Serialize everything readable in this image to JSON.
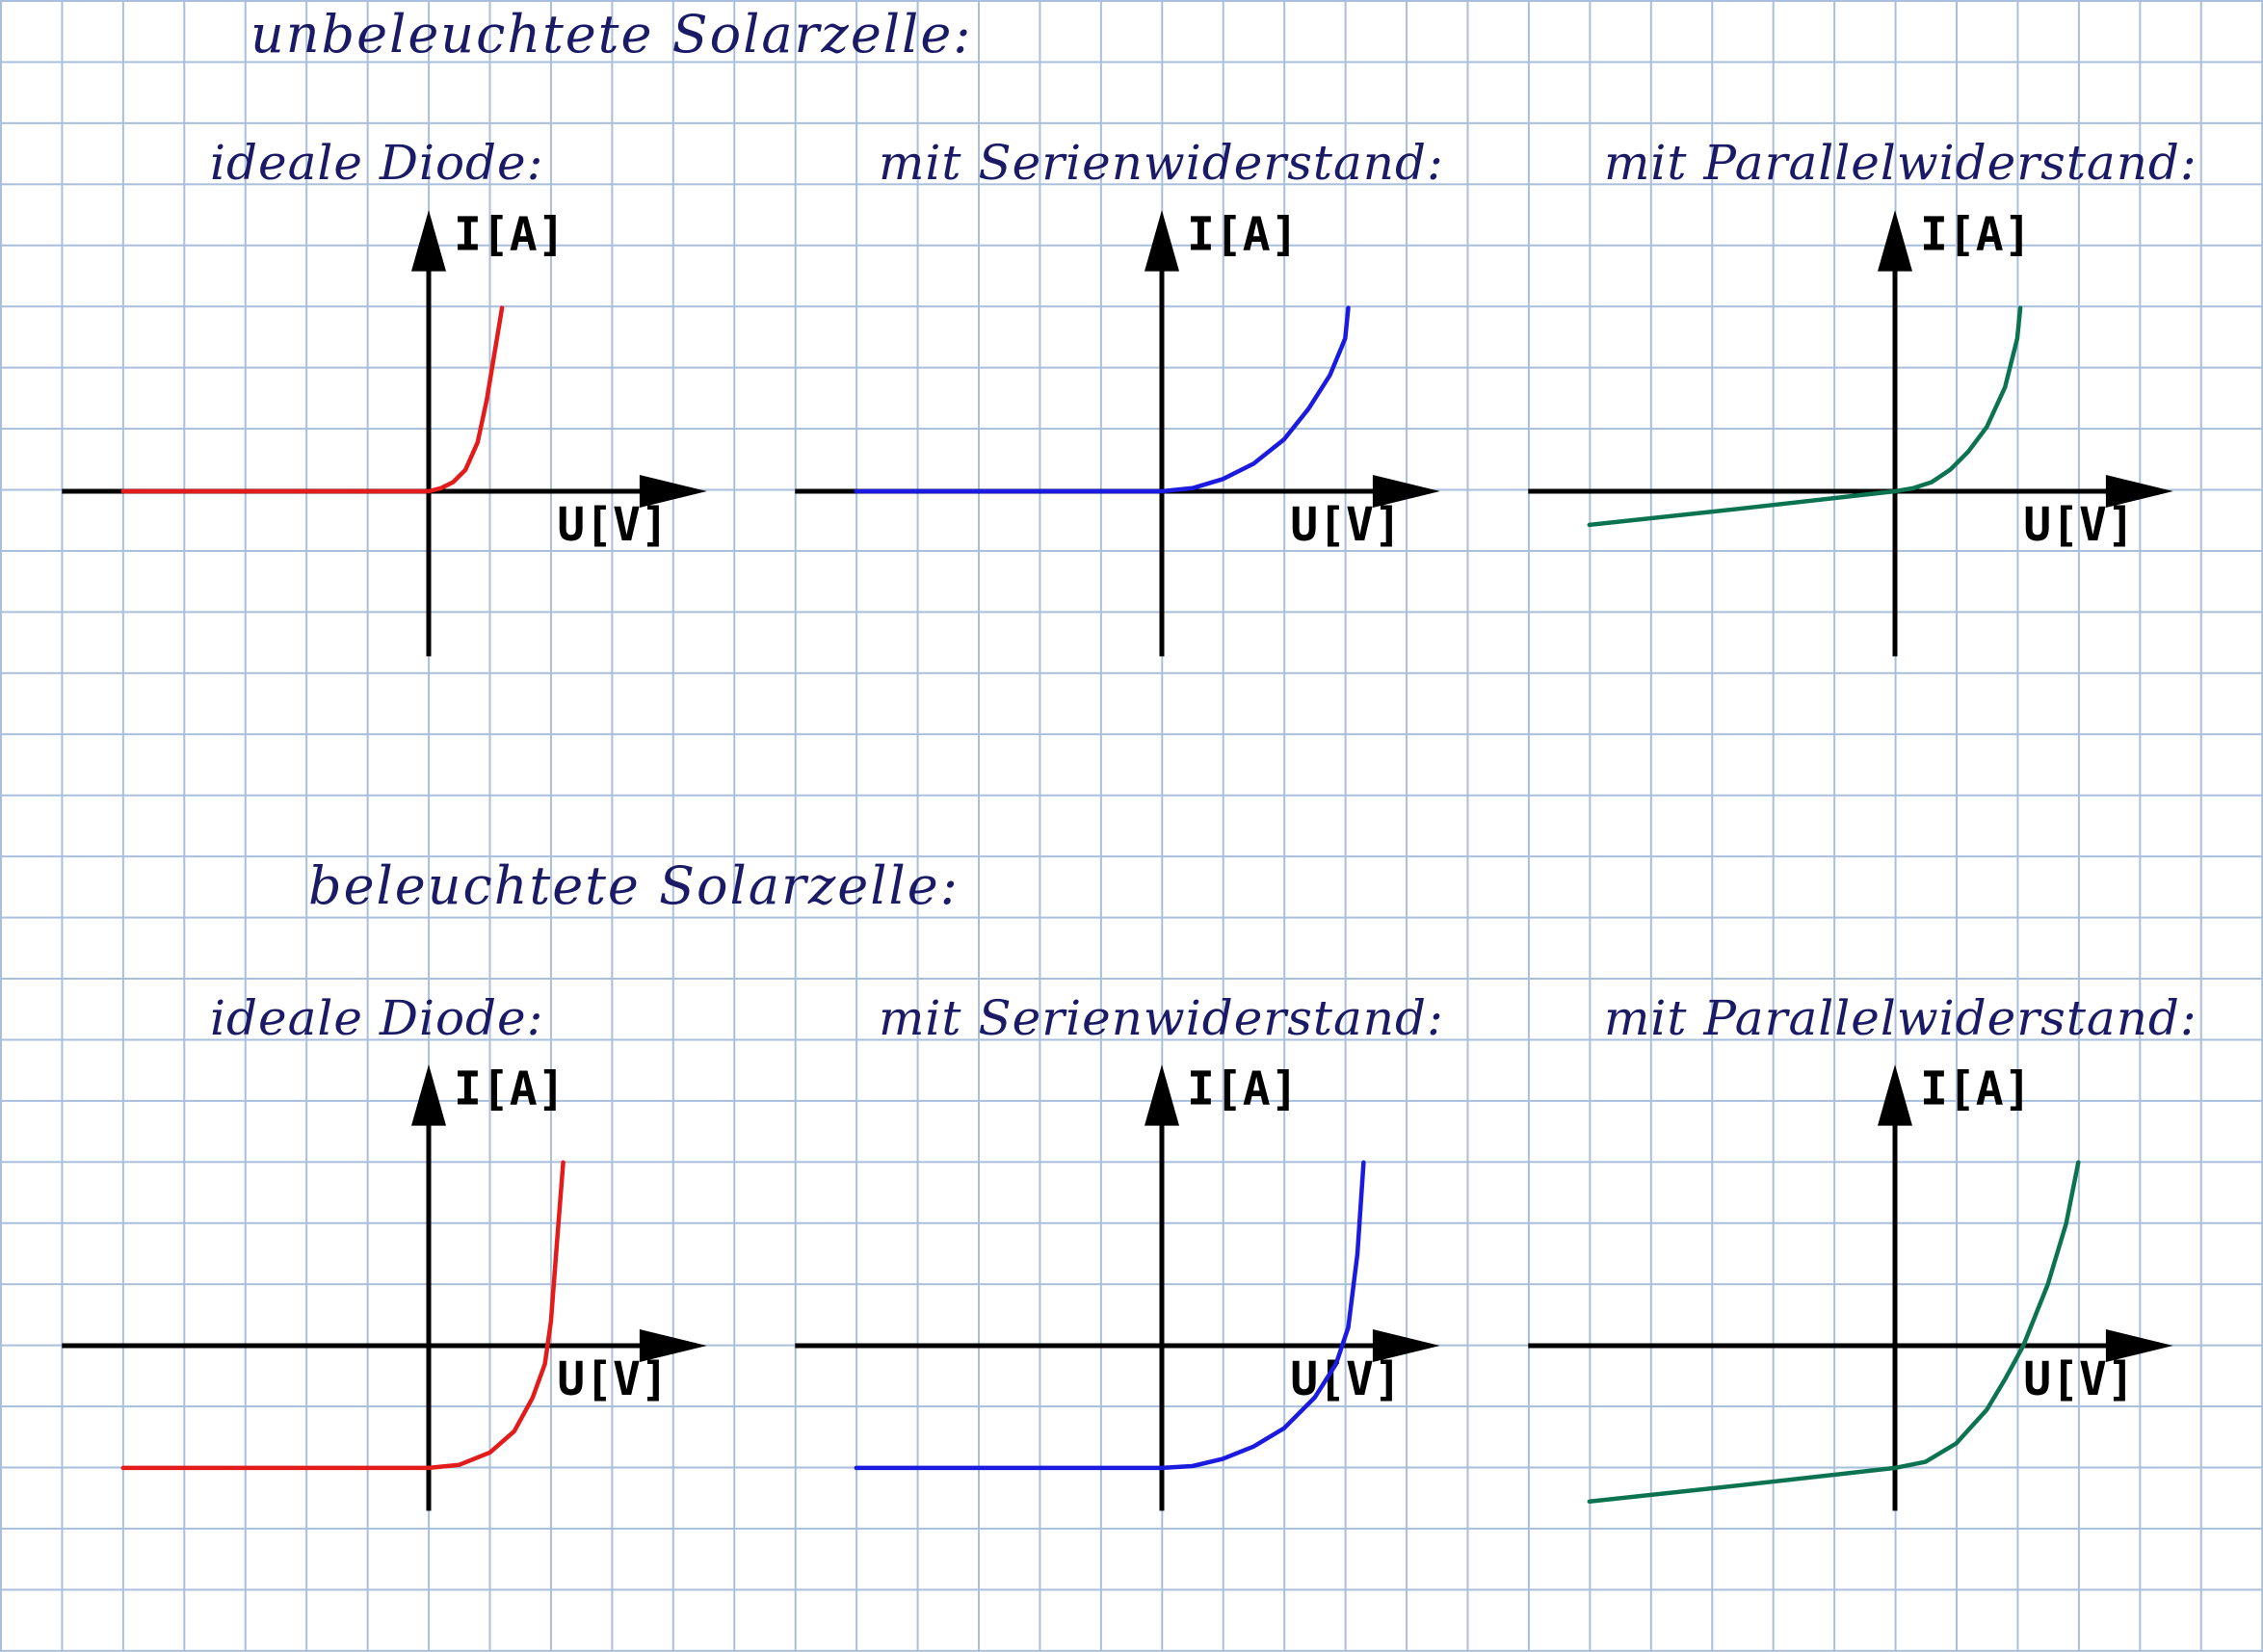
{
  "headings": {
    "dark": "unbeleuchtete Solarzelle:",
    "lit": "beleuchtete Solarzelle:"
  },
  "colors": {
    "grid": "#a9bfdc",
    "heading": "#1a1a66",
    "axis": "#000000",
    "ideal": "#e31b1b",
    "series": "#1a1ae0",
    "parallel": "#0b7350"
  },
  "axis_labels": {
    "y": "I[A]",
    "x": "U[V]"
  },
  "chart_data": [
    {
      "type": "line",
      "title": "ideale Diode:",
      "xlabel": "U[V]",
      "ylabel": "I[A]",
      "xlim": [
        -6,
        4
      ],
      "ylim": [
        -4,
        4
      ],
      "grid": true,
      "color": "#e31b1b",
      "x": [
        -5,
        -2,
        0,
        0.2,
        0.4,
        0.6,
        0.8,
        0.95,
        1.1,
        1.2
      ],
      "y": [
        0,
        0,
        0,
        0.05,
        0.15,
        0.35,
        0.8,
        1.5,
        2.4,
        3
      ]
    },
    {
      "type": "line",
      "title": "mit Serienwiderstand:",
      "xlabel": "U[V]",
      "ylabel": "I[A]",
      "xlim": [
        -6,
        4
      ],
      "ylim": [
        -4,
        4
      ],
      "grid": true,
      "color": "#1a1ae0",
      "x": [
        -5,
        -2,
        0,
        0.5,
        1,
        1.5,
        2,
        2.4,
        2.75,
        3,
        3.05
      ],
      "y": [
        0,
        0,
        0,
        0.05,
        0.2,
        0.45,
        0.85,
        1.35,
        1.9,
        2.5,
        3
      ]
    },
    {
      "type": "line",
      "title": "mit Parallelwiderstand:",
      "xlabel": "U[V]",
      "ylabel": "I[A]",
      "xlim": [
        -6,
        4
      ],
      "ylim": [
        -4,
        4
      ],
      "grid": true,
      "color": "#0b7350",
      "x": [
        -5,
        -2.5,
        0,
        0.3,
        0.6,
        0.9,
        1.2,
        1.5,
        1.8,
        2,
        2.05
      ],
      "y": [
        -0.55,
        -0.28,
        0,
        0.05,
        0.15,
        0.35,
        0.65,
        1.05,
        1.7,
        2.5,
        3
      ]
    },
    {
      "type": "line",
      "title": "ideale Diode:",
      "xlabel": "U[V]",
      "ylabel": "I[A]",
      "xlim": [
        -6,
        4
      ],
      "ylim": [
        -4,
        4
      ],
      "grid": true,
      "color": "#e31b1b",
      "x": [
        -5,
        -2,
        0,
        0.5,
        1,
        1.4,
        1.7,
        1.9,
        2,
        2.1,
        2.2
      ],
      "y": [
        -2,
        -2,
        -2,
        -1.95,
        -1.75,
        -1.4,
        -0.85,
        -0.3,
        0.4,
        1.7,
        3
      ]
    },
    {
      "type": "line",
      "title": "mit Serienwiderstand:",
      "xlabel": "U[V]",
      "ylabel": "I[A]",
      "xlim": [
        -6,
        4
      ],
      "ylim": [
        -4,
        4
      ],
      "grid": true,
      "color": "#1a1ae0",
      "x": [
        -5,
        -2,
        0,
        0.5,
        1,
        1.5,
        2,
        2.5,
        2.85,
        3.05,
        3.2,
        3.3
      ],
      "y": [
        -2,
        -2,
        -2,
        -1.97,
        -1.85,
        -1.65,
        -1.35,
        -0.85,
        -0.3,
        0.3,
        1.5,
        3
      ]
    },
    {
      "type": "line",
      "title": "mit Parallelwiderstand:",
      "xlabel": "U[V]",
      "ylabel": "I[A]",
      "xlim": [
        -6,
        4
      ],
      "ylim": [
        -4,
        4
      ],
      "grid": true,
      "color": "#0b7350",
      "x": [
        -5,
        -2.5,
        0,
        0.5,
        1,
        1.5,
        1.8,
        2.1,
        2.5,
        2.8,
        3
      ],
      "y": [
        -2.55,
        -2.28,
        -2,
        -1.9,
        -1.6,
        -1.05,
        -0.55,
        0,
        1,
        2,
        3
      ]
    }
  ]
}
